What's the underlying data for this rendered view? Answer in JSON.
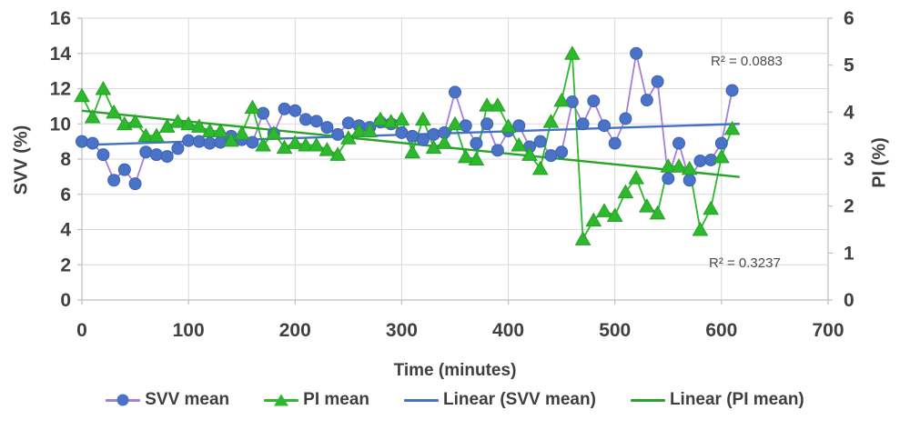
{
  "chart_data": {
    "type": "line",
    "title": "",
    "xlabel": "Time (minutes)",
    "ylabel_left": "SVV (%)",
    "ylabel_right": "PI (%)",
    "xlim": [
      0,
      700
    ],
    "ylim_left": [
      0,
      16
    ],
    "ylim_right": [
      0,
      6
    ],
    "xticks": [
      0,
      100,
      200,
      300,
      400,
      500,
      600,
      700
    ],
    "yticks_left": [
      0,
      2,
      4,
      6,
      8,
      10,
      12,
      14,
      16
    ],
    "yticks_right": [
      0,
      1,
      2,
      3,
      4,
      5,
      6
    ],
    "grid": true,
    "legend_position": "bottom",
    "x": [
      0,
      10,
      20,
      30,
      40,
      50,
      60,
      70,
      80,
      90,
      100,
      110,
      120,
      130,
      140,
      150,
      160,
      170,
      180,
      190,
      200,
      210,
      220,
      230,
      240,
      250,
      260,
      270,
      280,
      290,
      300,
      310,
      320,
      330,
      340,
      350,
      360,
      370,
      380,
      390,
      400,
      410,
      420,
      430,
      440,
      450,
      460,
      470,
      480,
      490,
      500,
      510,
      520,
      530,
      540,
      550,
      560,
      570,
      580,
      590,
      600,
      610
    ],
    "series": [
      {
        "name": "SVV mean",
        "axis": "left",
        "marker": "circle",
        "marker_color": "#4a73c8",
        "marker_edge": "#3c61b4",
        "line_color": "#a57fd8",
        "values": [
          9.0,
          8.9,
          8.25,
          6.8,
          7.4,
          6.6,
          8.4,
          8.25,
          8.15,
          8.6,
          9.05,
          9.0,
          8.9,
          8.95,
          9.3,
          9.1,
          8.95,
          10.6,
          9.45,
          10.85,
          10.75,
          10.25,
          10.15,
          9.8,
          9.4,
          10.05,
          9.9,
          9.8,
          10.1,
          10.0,
          9.5,
          9.3,
          9.1,
          9.4,
          9.5,
          11.8,
          9.9,
          8.9,
          10.0,
          8.5,
          9.6,
          9.9,
          8.7,
          9.0,
          8.2,
          8.4,
          11.25,
          10.0,
          11.3,
          9.9,
          8.9,
          10.3,
          14.0,
          11.35,
          12.4,
          6.9,
          8.9,
          6.8,
          7.9,
          7.95,
          8.9,
          11.9
        ]
      },
      {
        "name": "PI mean",
        "axis": "right",
        "marker": "triangle",
        "marker_color": "#2eb82e",
        "marker_edge": "#23a123",
        "line_color": "#2eb82e",
        "values": [
          4.35,
          3.9,
          4.5,
          4.0,
          3.75,
          3.8,
          3.5,
          3.5,
          3.7,
          3.8,
          3.75,
          3.7,
          3.6,
          3.6,
          3.4,
          3.55,
          4.1,
          3.3,
          3.55,
          3.25,
          3.35,
          3.3,
          3.3,
          3.2,
          3.1,
          3.45,
          3.6,
          3.6,
          3.85,
          3.8,
          3.85,
          3.15,
          3.85,
          3.25,
          3.35,
          3.75,
          3.05,
          3.0,
          4.15,
          4.15,
          3.7,
          3.3,
          3.1,
          2.8,
          3.8,
          4.25,
          5.25,
          1.3,
          1.7,
          1.9,
          1.8,
          2.3,
          2.6,
          2.0,
          1.85,
          2.85,
          2.85,
          2.8,
          1.5,
          1.95,
          3.05,
          3.65
        ]
      }
    ],
    "trendlines": [
      {
        "name": "Linear (SVV mean)",
        "axis": "left",
        "color": "#4472c4",
        "start": [
          0,
          8.8
        ],
        "end": [
          617,
          10.0
        ],
        "r2": "R² = 0.0883"
      },
      {
        "name": "Linear (PI mean)",
        "axis": "right",
        "color": "#28a428",
        "start": [
          0,
          4.03
        ],
        "end": [
          617,
          2.62
        ],
        "r2": "R² = 0.3237"
      }
    ]
  },
  "annotations": {
    "r2_svv": "R² = 0.0883",
    "r2_pi": "R² = 0.3237"
  },
  "legend": {
    "items": [
      {
        "label": "SVV mean"
      },
      {
        "label": "PI mean"
      },
      {
        "label": "Linear (SVV mean)"
      },
      {
        "label": "Linear (PI mean)"
      }
    ]
  },
  "colors": {
    "background": "#ffffff",
    "grid": "#d9d9d9",
    "axis": "#bfbfbf",
    "text": "#404040"
  }
}
